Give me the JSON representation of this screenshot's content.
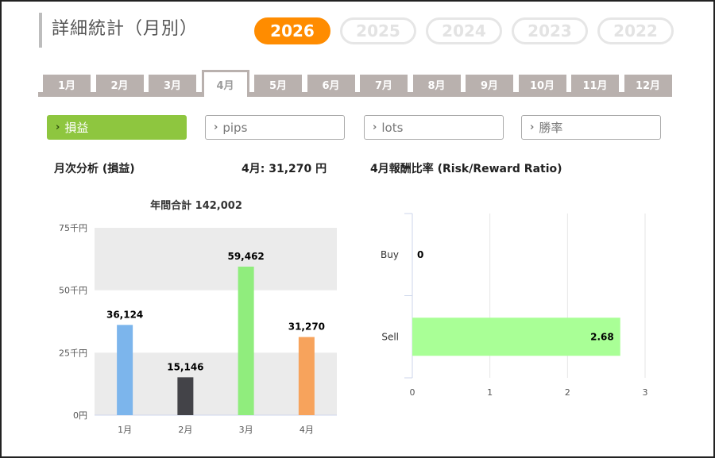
{
  "title": "詳細統計（月別）",
  "years": [
    "2026",
    "2025",
    "2024",
    "2023",
    "2022"
  ],
  "active_year_index": 0,
  "months": [
    "1月",
    "2月",
    "3月",
    "4月",
    "5月",
    "6月",
    "7月",
    "8月",
    "9月",
    "10月",
    "11月",
    "12月"
  ],
  "active_month_index": 3,
  "metrics": [
    {
      "label": "損益",
      "active": true
    },
    {
      "label": "pips",
      "active": false
    },
    {
      "label": "lots",
      "active": false
    },
    {
      "label": "勝率",
      "active": false
    }
  ],
  "summary": {
    "left_title": "月次分析 (損益)",
    "month_value": "4月:  31,270 円",
    "right_title": "4月報酬比率 (Risk/Reward Ratio)"
  },
  "chart_data": [
    {
      "type": "bar",
      "title": "年間合計 142,002",
      "categories": [
        "1月",
        "2月",
        "3月",
        "4月"
      ],
      "values": [
        36124,
        15146,
        59462,
        31270
      ],
      "value_labels": [
        "36,124",
        "15,146",
        "59,462",
        "31,270"
      ],
      "colors": [
        "#7cb5ec",
        "#434348",
        "#90ed7d",
        "#f7a35c"
      ],
      "ylim": [
        0,
        75000
      ],
      "yticks": [
        0,
        25000,
        50000,
        75000
      ],
      "ytick_labels": [
        "0円",
        "25千円",
        "50千円",
        "75千円"
      ],
      "band_color": "#ebebeb"
    },
    {
      "type": "bar",
      "orientation": "horizontal",
      "categories": [
        "Buy",
        "Sell"
      ],
      "values": [
        0,
        2.68
      ],
      "value_labels": [
        "0",
        "2.68"
      ],
      "color": "#a9ff96",
      "xlim": [
        0,
        3
      ],
      "xticks": [
        0,
        1,
        2,
        3
      ],
      "xtick_labels": [
        "0",
        "1",
        "2",
        "3"
      ]
    }
  ]
}
